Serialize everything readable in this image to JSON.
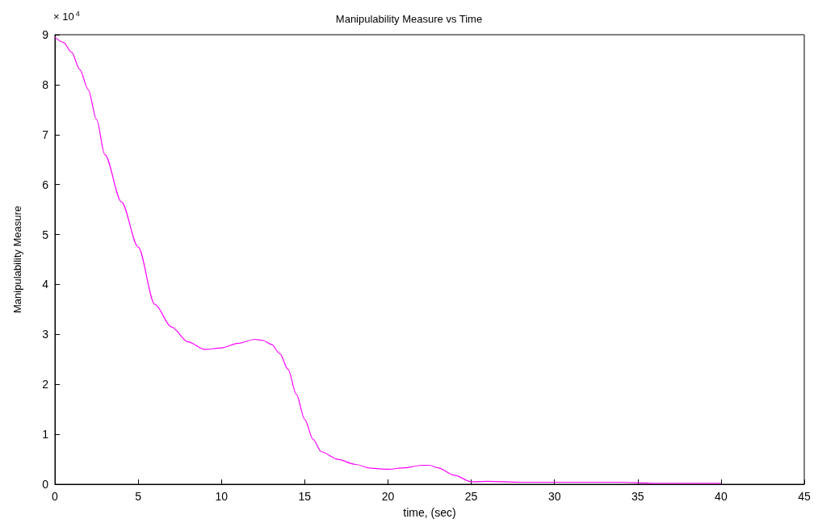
{
  "chart_data": {
    "type": "line",
    "title": "Manipulability Measure vs Time",
    "xlabel": "time, (sec)",
    "ylabel": "Manipulability Measure",
    "annotations": [
      "× 10$^{4}$"
    ],
    "x": [
      0,
      0.5,
      1,
      1.5,
      2,
      2.5,
      3,
      4,
      5,
      6,
      7,
      8,
      9,
      10,
      11,
      12,
      12.5,
      13,
      13.5,
      14,
      14.5,
      15,
      15.5,
      16,
      17,
      18,
      19,
      20,
      21,
      22,
      22.5,
      23,
      24,
      25,
      26,
      28,
      30,
      34,
      36,
      40
    ],
    "series": [
      {
        "color": "#ff00ff",
        "values": [
          8.95,
          8.85,
          8.65,
          8.3,
          7.9,
          7.3,
          6.6,
          5.65,
          4.75,
          3.6,
          3.15,
          2.85,
          2.7,
          2.73,
          2.82,
          2.9,
          2.88,
          2.8,
          2.62,
          2.3,
          1.8,
          1.3,
          0.9,
          0.65,
          0.5,
          0.4,
          0.32,
          0.3,
          0.33,
          0.38,
          0.38,
          0.33,
          0.18,
          0.05,
          0.06,
          0.04,
          0.04,
          0.04,
          0.02,
          0.02
        ]
      }
    ],
    "xlim": [
      0,
      45
    ],
    "xticks": [
      0,
      5,
      10,
      15,
      20,
      25,
      30,
      35,
      40,
      45
    ],
    "ylim": [
      0,
      9
    ],
    "yticks": [
      0,
      1,
      2,
      3,
      4,
      5,
      6,
      7,
      8,
      9
    ],
    "grid": false,
    "marker": "none",
    "line_style": "solid"
  }
}
